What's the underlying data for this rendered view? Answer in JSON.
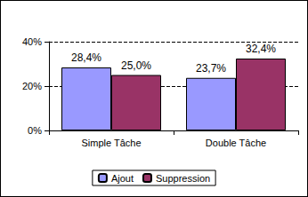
{
  "chart_data": {
    "type": "bar",
    "categories": [
      "Simple Tâche",
      "Double Tâche"
    ],
    "series": [
      {
        "name": "Ajout",
        "color": "#9999ff",
        "values": [
          28.4,
          23.7
        ],
        "value_labels": [
          "28,4%",
          "23,7%"
        ]
      },
      {
        "name": "Suppression",
        "color": "#993366",
        "values": [
          25.0,
          32.4
        ],
        "value_labels": [
          "25,0%",
          "32,4%"
        ]
      }
    ],
    "ylim": [
      0,
      40
    ],
    "yticks": [
      {
        "value": 0,
        "label": "0%"
      },
      {
        "value": 20,
        "label": "20%"
      },
      {
        "value": 40,
        "label": "40%"
      }
    ],
    "grid": true,
    "legend": "bottom",
    "data_labels": true
  }
}
